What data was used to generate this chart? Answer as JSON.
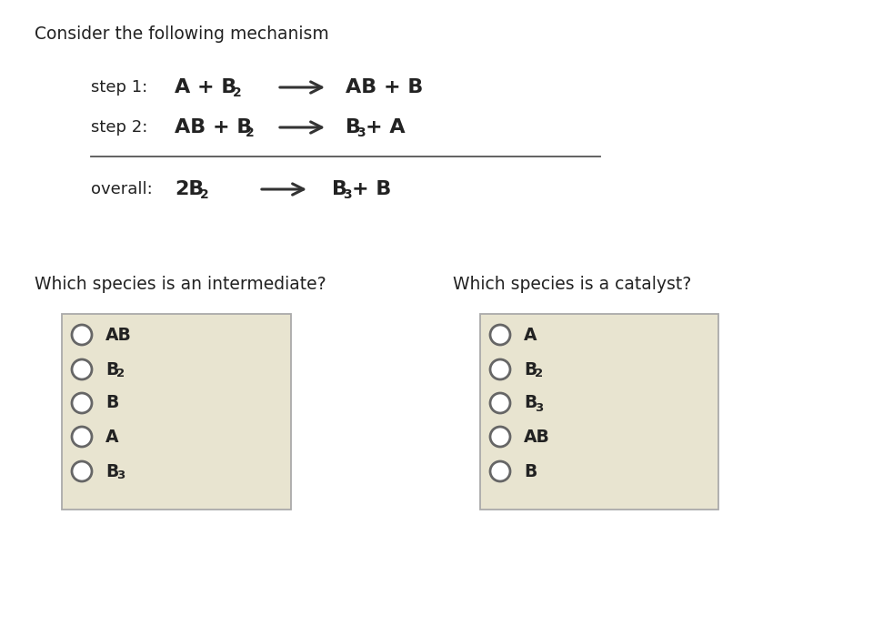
{
  "background_color": "#ffffff",
  "title_text": "Consider the following mechanism",
  "text_color": "#222222",
  "arrow_color": "#333333",
  "box_bg": "#e8e4d0",
  "box_border": "#aaaaaa",
  "circle_facecolor": "#ffffff",
  "circle_edgecolor": "#666666",
  "q1_text": "Which species is an intermediate?",
  "q2_text": "Which species is a catalyst?",
  "q1_labels_main": [
    "AB",
    "B",
    "B",
    "A",
    "B"
  ],
  "q1_labels_sub": [
    "",
    "2",
    "",
    "",
    "3"
  ],
  "q2_labels_main": [
    "A",
    "B",
    "B",
    "AB",
    "B"
  ],
  "q2_labels_sub": [
    "",
    "2",
    "3",
    "",
    ""
  ]
}
